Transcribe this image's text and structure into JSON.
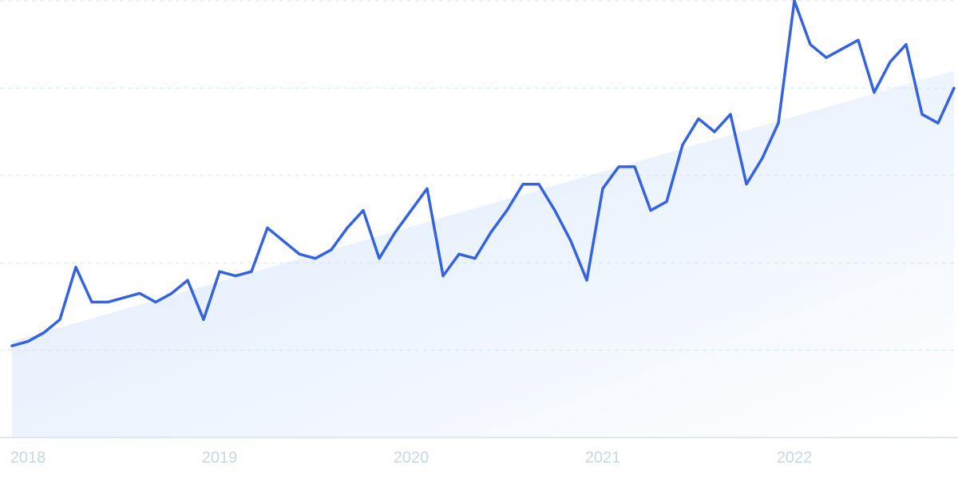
{
  "chart_data": {
    "type": "line",
    "categories": [
      null,
      "2018",
      null,
      null,
      null,
      null,
      null,
      null,
      null,
      null,
      null,
      null,
      null,
      "2019",
      null,
      null,
      null,
      null,
      null,
      null,
      null,
      null,
      null,
      null,
      null,
      "2020",
      null,
      null,
      null,
      null,
      null,
      null,
      null,
      null,
      null,
      null,
      null,
      "2021",
      null,
      null,
      null,
      null,
      null,
      null,
      null,
      null,
      null,
      null,
      null,
      "2022",
      null,
      null,
      null,
      null,
      null,
      null,
      null,
      null,
      null,
      null
    ],
    "series": [
      {
        "color": "#3563e0",
        "values": [
          21,
          22,
          24,
          27,
          39,
          31,
          31,
          32,
          33,
          31,
          33,
          36,
          27,
          38,
          37,
          38,
          48,
          45,
          42,
          41,
          43,
          48,
          52,
          41,
          47,
          52,
          57,
          37,
          42,
          41,
          47,
          52,
          58,
          58,
          52,
          45,
          36,
          57,
          62,
          62,
          52,
          54,
          67,
          73,
          70,
          74,
          58,
          64,
          72,
          100,
          90,
          87,
          89,
          91,
          79,
          86,
          90,
          74,
          72,
          80
        ]
      }
    ],
    "trend": {
      "values": [
        22,
        84
      ]
    },
    "ylim": [
      0,
      100
    ],
    "yticks": [
      0,
      20,
      40,
      60,
      80,
      100
    ],
    "grid": true
  }
}
